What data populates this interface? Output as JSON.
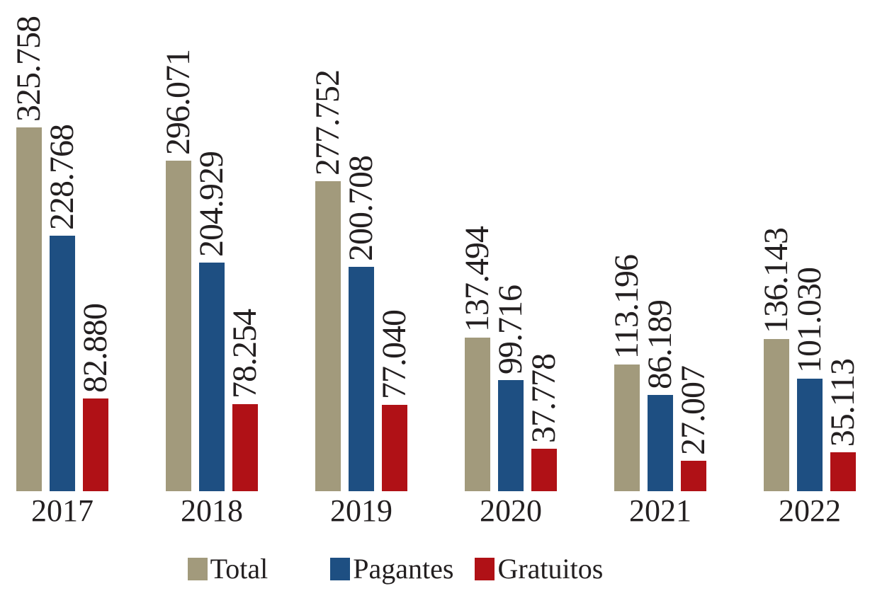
{
  "chart_data": {
    "type": "bar",
    "title": "",
    "xlabel": "",
    "ylabel": "",
    "grid": false,
    "axes_visible": false,
    "legend_position": "bottom",
    "ylim": [
      0,
      325758
    ],
    "categories": [
      "2017",
      "2018",
      "2019",
      "2020",
      "2021",
      "2022"
    ],
    "series": [
      {
        "name": "Total",
        "color": "#A29A7C",
        "values": [
          325758,
          296071,
          277752,
          137494,
          113196,
          136143
        ],
        "labels": [
          "325.758",
          "296.071",
          "277.752",
          "137.494",
          "113.196",
          "136.143"
        ]
      },
      {
        "name": "Pagantes",
        "color": "#1E4F82",
        "values": [
          228768,
          204929,
          200708,
          99716,
          86189,
          101030
        ],
        "labels": [
          "228.768",
          "204.929",
          "200.708",
          "99.716",
          "86.189",
          "101.030"
        ]
      },
      {
        "name": "Gratuitos",
        "color": "#B01116",
        "values": [
          82880,
          78254,
          77040,
          37778,
          27007,
          35113
        ],
        "labels": [
          "82.880",
          "78.254",
          "77.040",
          "37.778",
          "27.007",
          "35.113"
        ]
      }
    ],
    "colors": {
      "text": "#231F20",
      "background": "#FFFFFF"
    }
  }
}
